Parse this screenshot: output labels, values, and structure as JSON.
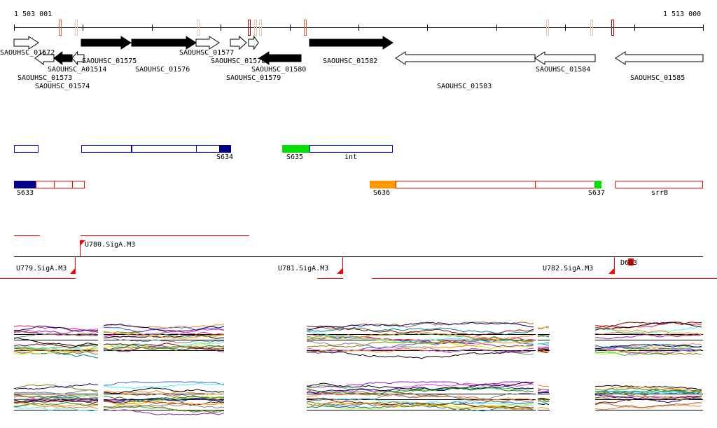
{
  "ruler": {
    "start_label": "1 503 001",
    "end_label": "1 513 000"
  },
  "genes": [
    {
      "name": "SAOUHSC_01572",
      "strand": "+",
      "fill": "open"
    },
    {
      "name": "SAOUHSC_01573",
      "strand": "-",
      "fill": "open"
    },
    {
      "name": "SAOUHSC_01574",
      "strand": "-",
      "fill": "solid"
    },
    {
      "name": "SAOUHSC_A01514",
      "strand": "-",
      "fill": "open"
    },
    {
      "name": "SAOUHSC_01575",
      "strand": "+",
      "fill": "solid"
    },
    {
      "name": "SAOUHSC_01576",
      "strand": "+",
      "fill": "solid"
    },
    {
      "name": "SAOUHSC_01577",
      "strand": "+",
      "fill": "open"
    },
    {
      "name": "SAOUHSC_01578",
      "strand": "+",
      "fill": "open"
    },
    {
      "name": "SAOUHSC_01579",
      "strand": "+",
      "fill": "open"
    },
    {
      "name": "SAOUHSC_01580",
      "strand": "-",
      "fill": "solid"
    },
    {
      "name": "SAOUHSC_01582",
      "strand": "+",
      "fill": "solid"
    },
    {
      "name": "SAOUHSC_01583",
      "strand": "-",
      "fill": "open"
    },
    {
      "name": "SAOUHSC_01584",
      "strand": "-",
      "fill": "open"
    },
    {
      "name": "SAOUHSC_01585",
      "strand": "-",
      "fill": "open"
    }
  ],
  "segments_plus": {
    "labels": [
      "S634",
      "S635",
      "int"
    ]
  },
  "segments_minus": {
    "labels": [
      "S633",
      "S636",
      "S637",
      "srrB"
    ]
  },
  "promoters": [
    "U779.SigA.M3",
    "U780.SigA.M3",
    "U781.SigA.M3",
    "U782.SigA.M3",
    "D663"
  ],
  "colors": {
    "navy": "#00008b",
    "green": "#00e000",
    "orange": "#ff9900",
    "red": "#ff0000",
    "blue_outline": "#0000ff"
  }
}
